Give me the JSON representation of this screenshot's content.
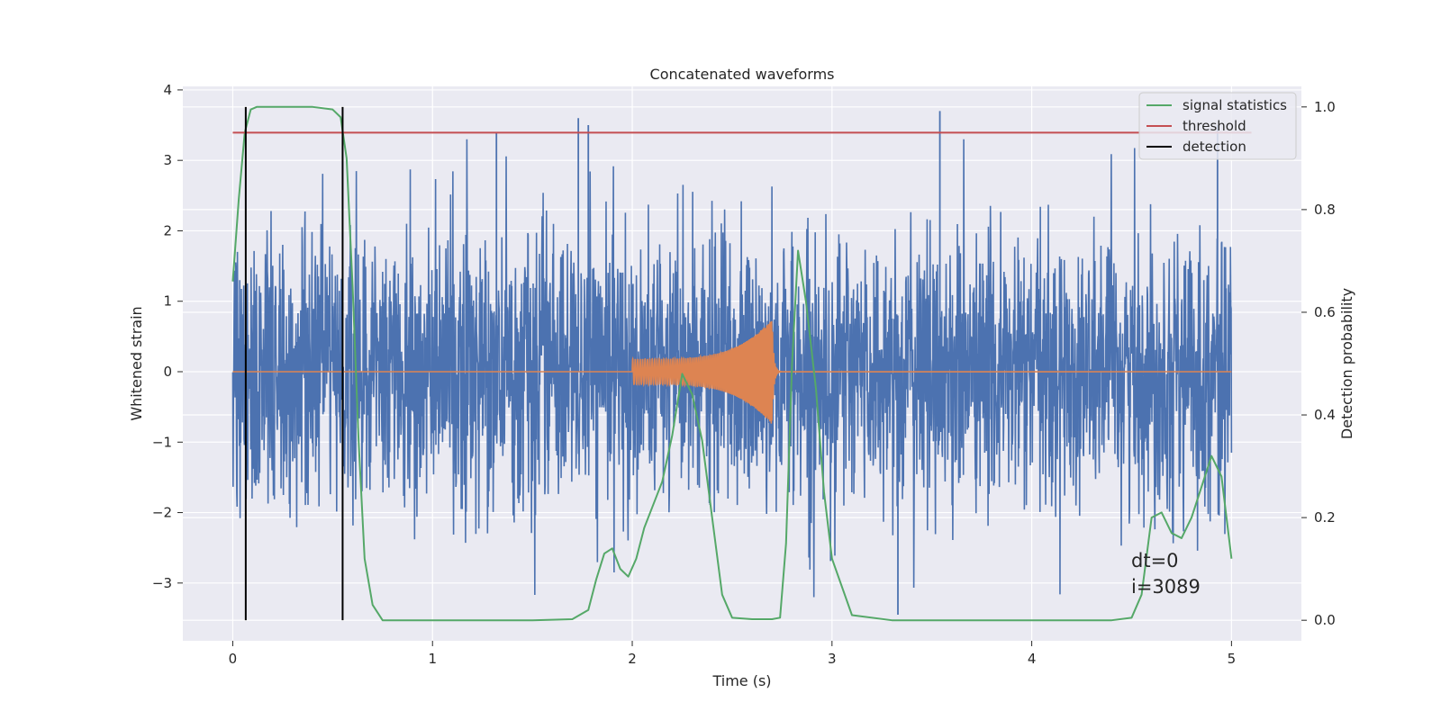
{
  "chart_data": {
    "type": "line",
    "title": "Concatenated waveforms",
    "xlabel": "Time (s)",
    "ylabel": "Whitened strain",
    "ylabel_right": "Detection probability",
    "xlim": [
      -0.25,
      5.35
    ],
    "ylim": [
      -3.82,
      4.05
    ],
    "ylim_right": [
      -0.04,
      1.04
    ],
    "xticks": [
      0,
      1,
      2,
      3,
      4,
      5
    ],
    "yticks": [
      -3,
      -2,
      -1,
      0,
      1,
      2,
      3,
      4
    ],
    "yticks_right": [
      0.0,
      0.2,
      0.4,
      0.6,
      0.8,
      1.0
    ],
    "xtick_labels": [
      "0",
      "1",
      "2",
      "3",
      "4",
      "5"
    ],
    "ytick_labels": [
      "−3",
      "−2",
      "−1",
      "0",
      "1",
      "2",
      "3",
      "4"
    ],
    "ytick_right_labels": [
      "0.0",
      "0.2",
      "0.4",
      "0.6",
      "0.8",
      "1.0"
    ],
    "grid": true,
    "legend_position": "top-right",
    "colors": {
      "noise": "#4c72b0",
      "injection": "#dd8452",
      "signal_statistics": "#55a868",
      "threshold": "#c44e52",
      "detection": "#000000",
      "background": "#eaeaf2",
      "grid": "#ffffff"
    },
    "series": [
      {
        "name": "whitened strain (noise)",
        "axis": "left",
        "color": "#4c72b0",
        "x_range": [
          0,
          5
        ],
        "amplitude_envelope": [
          -3.5,
          3.7
        ],
        "notable_peaks": [
          {
            "x": 1.32,
            "y": 3.4
          },
          {
            "x": 1.73,
            "y": 3.6
          },
          {
            "x": 1.78,
            "y": 3.5
          },
          {
            "x": 3.54,
            "y": 3.7
          },
          {
            "x": 3.33,
            "y": -3.45
          },
          {
            "x": 4.93,
            "y": 3.5
          }
        ]
      },
      {
        "name": "injected signal",
        "axis": "left",
        "color": "#dd8452",
        "x_range": [
          0,
          5
        ],
        "chirp_start": 2.0,
        "chirp_merger": 2.7,
        "chirp_amplitude_start": 0.18,
        "chirp_amplitude_peak": 0.75
      },
      {
        "name": "signal statistics",
        "axis": "right",
        "color": "#55a868",
        "x": [
          0.0,
          0.03,
          0.06,
          0.09,
          0.12,
          0.2,
          0.3,
          0.4,
          0.5,
          0.54,
          0.57,
          0.6,
          0.63,
          0.66,
          0.7,
          0.75,
          0.9,
          1.2,
          1.5,
          1.7,
          1.78,
          1.82,
          1.86,
          1.9,
          1.94,
          1.98,
          2.02,
          2.06,
          2.1,
          2.15,
          2.2,
          2.25,
          2.3,
          2.35,
          2.4,
          2.45,
          2.5,
          2.6,
          2.7,
          2.74,
          2.77,
          2.8,
          2.83,
          2.87,
          2.92,
          2.96,
          3.0,
          3.1,
          3.3,
          3.6,
          4.0,
          4.4,
          4.5,
          4.55,
          4.6,
          4.65,
          4.7,
          4.75,
          4.8,
          4.85,
          4.9,
          4.95,
          5.0
        ],
        "values": [
          0.66,
          0.82,
          0.95,
          0.995,
          1.0,
          1.0,
          1.0,
          1.0,
          0.995,
          0.98,
          0.9,
          0.65,
          0.35,
          0.12,
          0.03,
          0.0,
          0.0,
          0.0,
          0.0,
          0.002,
          0.02,
          0.08,
          0.13,
          0.14,
          0.1,
          0.085,
          0.12,
          0.18,
          0.22,
          0.27,
          0.36,
          0.48,
          0.44,
          0.35,
          0.2,
          0.05,
          0.005,
          0.002,
          0.002,
          0.005,
          0.15,
          0.5,
          0.72,
          0.62,
          0.45,
          0.25,
          0.12,
          0.01,
          0.0,
          0.0,
          0.0,
          0.0,
          0.005,
          0.05,
          0.2,
          0.21,
          0.17,
          0.16,
          0.2,
          0.26,
          0.32,
          0.28,
          0.12
        ]
      },
      {
        "name": "threshold",
        "axis": "right",
        "color": "#c44e52",
        "x": [
          0,
          5.1
        ],
        "values": [
          0.95,
          0.95
        ]
      },
      {
        "name": "detection",
        "axis": "right",
        "color": "#000000",
        "vertical_lines": [
          0.065,
          0.55
        ],
        "y_range": [
          0.0,
          1.0
        ]
      }
    ],
    "legend": [
      "signal statistics",
      "threshold",
      "detection"
    ],
    "annotations": [
      "dt=0",
      "i=3089"
    ]
  }
}
